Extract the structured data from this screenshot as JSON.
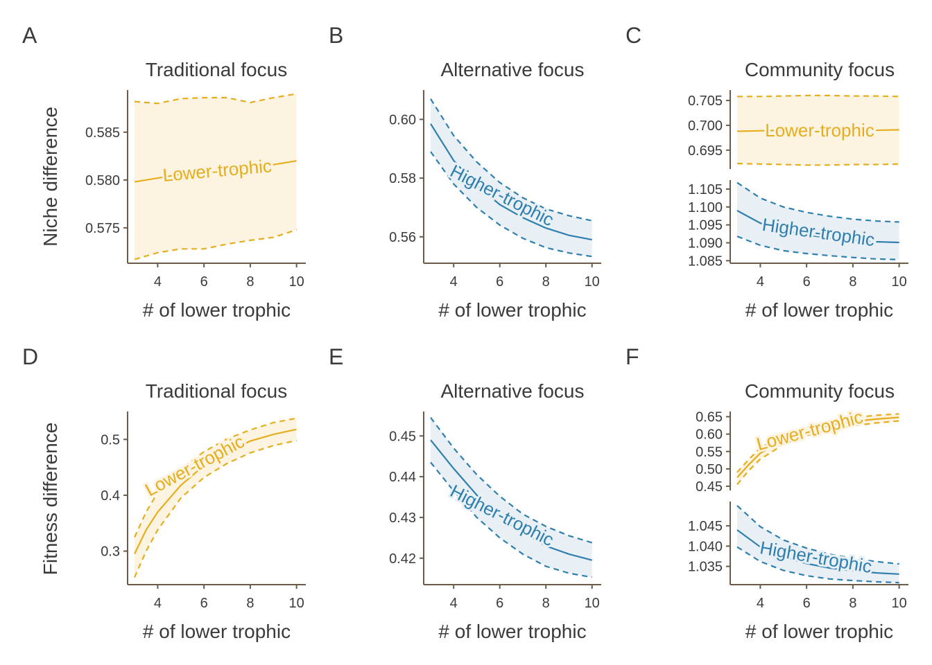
{
  "colors": {
    "lower": "#E6AE1E",
    "lower_fill": "#FCF4E1",
    "higher": "#2E7FAD",
    "higher_fill": "#E8F0F6",
    "axis": "#6B5A45",
    "text": "#3A3A3A"
  },
  "row_labels": {
    "top": "Niche difference",
    "bottom": "Fitness difference"
  },
  "chart_data": [
    {
      "panel": "A",
      "type": "line",
      "title": "Traditional focus",
      "xlabel": "# of lower trophic",
      "ylabel": "Niche difference",
      "xlim": [
        2.7,
        10.4
      ],
      "xticks": [
        4,
        6,
        8,
        10
      ],
      "blocks": [
        {
          "ylim": [
            0.5713,
            0.5894
          ],
          "yticks": [
            0.575,
            0.58,
            0.585
          ],
          "yticklabels": [
            "0.575",
            "0.580",
            "0.585"
          ],
          "series": [
            {
              "name": "Lower-trophic",
              "color": "lower",
              "x": [
                3,
                4,
                5,
                6,
                7,
                8,
                9,
                10
              ],
              "mean": [
                0.5798,
                0.5802,
                0.5806,
                0.5809,
                0.5811,
                0.5813,
                0.5816,
                0.582
              ],
              "lower": [
                0.5717,
                0.5724,
                0.5728,
                0.5728,
                0.5733,
                0.5737,
                0.574,
                0.5748
              ],
              "upper": [
                0.5882,
                0.588,
                0.5885,
                0.5886,
                0.5886,
                0.5881,
                0.5886,
                0.589
              ]
            }
          ]
        }
      ]
    },
    {
      "panel": "B",
      "type": "line",
      "title": "Alternative focus",
      "xlabel": "# of lower trophic",
      "ylabel": "",
      "xlim": [
        2.7,
        10.4
      ],
      "xticks": [
        4,
        6,
        8,
        10
      ],
      "blocks": [
        {
          "ylim": [
            0.551,
            0.61
          ],
          "yticks": [
            0.56,
            0.58,
            0.6
          ],
          "yticklabels": [
            "0.56",
            "0.58",
            "0.60"
          ],
          "series": [
            {
              "name": "Higher-trophic",
              "color": "higher",
              "x": [
                3,
                4,
                5,
                6,
                7,
                8,
                9,
                10
              ],
              "mean": [
                0.5985,
                0.586,
                0.5775,
                0.571,
                0.5665,
                0.563,
                0.5605,
                0.559
              ],
              "lower": [
                0.589,
                0.578,
                0.57,
                0.564,
                0.5595,
                0.5563,
                0.5545,
                0.5533
              ],
              "upper": [
                0.607,
                0.5945,
                0.5855,
                0.5785,
                0.5733,
                0.5695,
                0.5672,
                0.5655
              ]
            }
          ]
        }
      ]
    },
    {
      "panel": "C",
      "type": "line",
      "title": "Community focus",
      "xlabel": "# of lower trophic",
      "ylabel": "",
      "xlim": [
        2.7,
        10.4
      ],
      "xticks": [
        4,
        6,
        8,
        10
      ],
      "blocks": [
        {
          "ylim": [
            0.6912,
            0.7071
          ],
          "yticks": [
            0.695,
            0.7,
            0.705
          ],
          "yticklabels": [
            "0.695",
            "0.700",
            "0.705"
          ],
          "series": [
            {
              "name": "Lower-trophic",
              "color": "lower",
              "x": [
                3,
                4,
                5,
                6,
                7,
                8,
                9,
                10
              ],
              "mean": [
                0.6988,
                0.6989,
                0.699,
                0.699,
                0.699,
                0.699,
                0.699,
                0.6991
              ],
              "lower": [
                0.6923,
                0.6922,
                0.6921,
                0.692,
                0.692,
                0.6921,
                0.6921,
                0.6922
              ],
              "upper": [
                0.7058,
                0.7058,
                0.7059,
                0.706,
                0.706,
                0.7059,
                0.7059,
                0.7058
              ]
            }
          ]
        },
        {
          "ylim": [
            1.0843,
            1.1075
          ],
          "yticks": [
            1.085,
            1.09,
            1.095,
            1.1,
            1.105
          ],
          "yticklabels": [
            "1.085",
            "1.090",
            "1.095",
            "1.100",
            "1.105"
          ],
          "series": [
            {
              "name": "Higher-trophic",
              "color": "higher",
              "x": [
                3,
                4,
                5,
                6,
                7,
                8,
                9,
                10
              ],
              "mean": [
                1.099,
                1.0955,
                1.0935,
                1.0922,
                1.0913,
                1.0907,
                1.0903,
                1.0901
              ],
              "lower": [
                1.0918,
                1.0893,
                1.0878,
                1.087,
                1.0864,
                1.0859,
                1.0855,
                1.0853
              ],
              "upper": [
                1.1068,
                1.1025,
                1.1,
                1.0985,
                1.0974,
                1.0966,
                1.0961,
                1.0958
              ]
            }
          ]
        }
      ]
    },
    {
      "panel": "D",
      "type": "line",
      "title": "Traditional focus",
      "xlabel": "# of lower trophic",
      "ylabel": "Fitness difference",
      "xlim": [
        2.7,
        10.4
      ],
      "xticks": [
        4,
        6,
        8,
        10
      ],
      "blocks": [
        {
          "ylim": [
            0.24,
            0.55
          ],
          "yticks": [
            0.3,
            0.4,
            0.5
          ],
          "yticklabels": [
            "0.3",
            "0.4",
            "0.5"
          ],
          "series": [
            {
              "name": "Lower-trophic",
              "color": "lower",
              "x": [
                3,
                3.5,
                4,
                5,
                6,
                7,
                8,
                9,
                10
              ],
              "mean": [
                0.295,
                0.338,
                0.37,
                0.418,
                0.453,
                0.478,
                0.497,
                0.509,
                0.518
              ],
              "lower": [
                0.253,
                0.3,
                0.338,
                0.395,
                0.432,
                0.457,
                0.476,
                0.489,
                0.498
              ],
              "upper": [
                0.325,
                0.37,
                0.405,
                0.447,
                0.478,
                0.501,
                0.517,
                0.53,
                0.538
              ]
            }
          ]
        }
      ]
    },
    {
      "panel": "E",
      "type": "line",
      "title": "Alternative focus",
      "xlabel": "# of lower trophic",
      "ylabel": "",
      "xlim": [
        2.7,
        10.4
      ],
      "xticks": [
        4,
        6,
        8,
        10
      ],
      "blocks": [
        {
          "ylim": [
            0.4135,
            0.456
          ],
          "yticks": [
            0.42,
            0.43,
            0.44,
            0.45
          ],
          "yticklabels": [
            "0.42",
            "0.43",
            "0.44",
            "0.45"
          ],
          "series": [
            {
              "name": "Higher-trophic",
              "color": "higher",
              "x": [
                3,
                4,
                5,
                6,
                7,
                8,
                9,
                10
              ],
              "mean": [
                0.449,
                0.442,
                0.4355,
                0.43,
                0.4262,
                0.423,
                0.421,
                0.4195
              ],
              "lower": [
                0.4435,
                0.4365,
                0.43,
                0.425,
                0.421,
                0.418,
                0.4163,
                0.4153
              ],
              "upper": [
                0.4545,
                0.447,
                0.4405,
                0.4352,
                0.4308,
                0.4278,
                0.4255,
                0.4238
              ]
            }
          ]
        }
      ]
    },
    {
      "panel": "F",
      "type": "line",
      "title": "Community focus",
      "xlabel": "# of lower trophic",
      "ylabel": "",
      "xlim": [
        2.7,
        10.4
      ],
      "xticks": [
        4,
        6,
        8,
        10
      ],
      "blocks": [
        {
          "ylim": [
            0.438,
            0.665
          ],
          "yticks": [
            0.45,
            0.5,
            0.55,
            0.6,
            0.65
          ],
          "yticklabels": [
            "0.45",
            "0.50",
            "0.55",
            "0.60",
            "0.65"
          ],
          "series": [
            {
              "name": "Lower-trophic",
              "color": "lower",
              "x": [
                3,
                3.5,
                4,
                5,
                6,
                7,
                8,
                9,
                10
              ],
              "mean": [
                0.475,
                0.512,
                0.545,
                0.585,
                0.61,
                0.625,
                0.636,
                0.643,
                0.648
              ],
              "lower": [
                0.455,
                0.495,
                0.528,
                0.57,
                0.596,
                0.613,
                0.624,
                0.632,
                0.638
              ],
              "upper": [
                0.49,
                0.527,
                0.56,
                0.598,
                0.622,
                0.637,
                0.647,
                0.654,
                0.658
              ]
            }
          ]
        },
        {
          "ylim": [
            1.0305,
            1.051
          ],
          "yticks": [
            1.035,
            1.04,
            1.045
          ],
          "yticklabels": [
            "1.035",
            "1.040",
            "1.045"
          ],
          "series": [
            {
              "name": "Higher-trophic",
              "color": "higher",
              "x": [
                3,
                4,
                5,
                6,
                7,
                8,
                9,
                10
              ],
              "mean": [
                1.044,
                1.0398,
                1.0373,
                1.0357,
                1.0346,
                1.0339,
                1.0334,
                1.0331
              ],
              "lower": [
                1.0398,
                1.0362,
                1.034,
                1.0327,
                1.0319,
                1.0315,
                1.0312,
                1.031
              ],
              "upper": [
                1.05,
                1.0448,
                1.0415,
                1.0395,
                1.038,
                1.037,
                1.0362,
                1.0356
              ]
            }
          ]
        }
      ]
    }
  ]
}
